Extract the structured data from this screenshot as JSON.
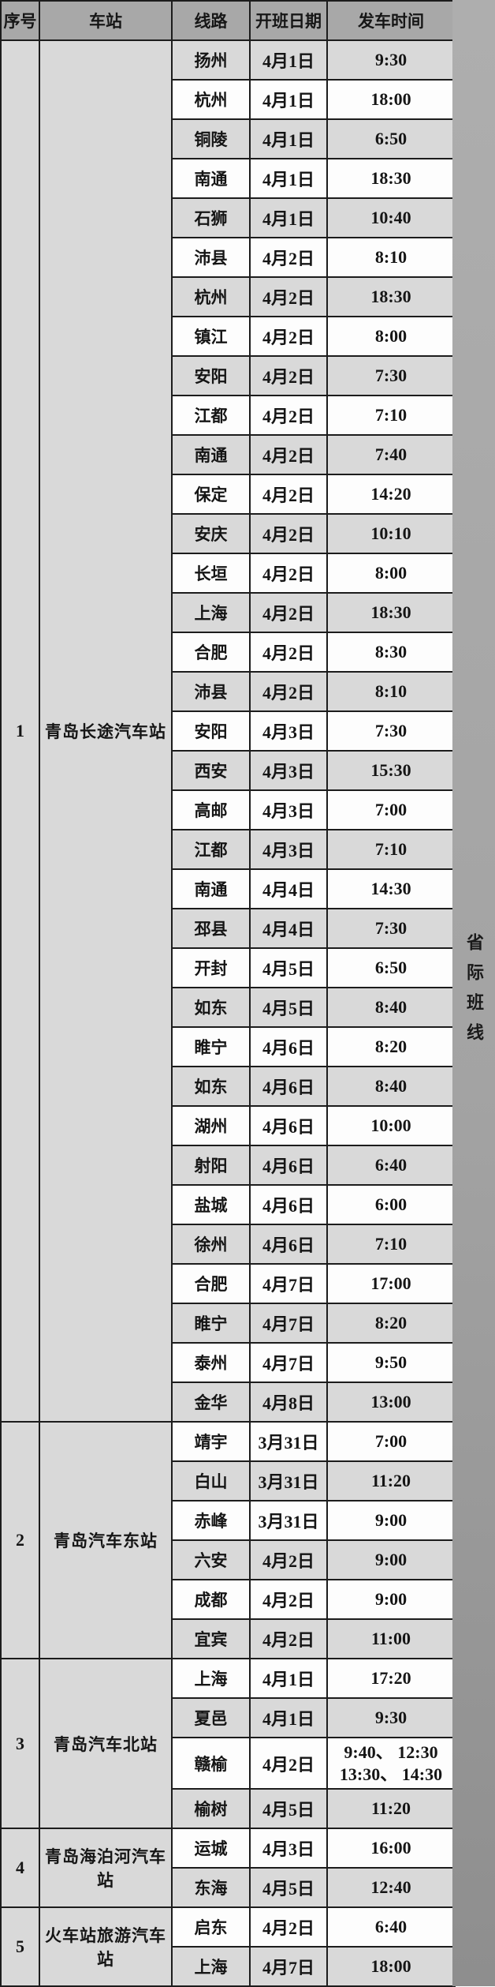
{
  "table": {
    "headers": {
      "index": "序号",
      "station": "车站",
      "route": "线路",
      "open_date": "开班日期",
      "depart_time": "发车时间"
    },
    "side_label": "省际班线",
    "sections": [
      {
        "index": "1",
        "station": "青岛长途汽车站",
        "rows": [
          {
            "route": "扬州",
            "date": "4月1日",
            "time": "9:30"
          },
          {
            "route": "杭州",
            "date": "4月1日",
            "time": "18:00"
          },
          {
            "route": "铜陵",
            "date": "4月1日",
            "time": "6:50"
          },
          {
            "route": "南通",
            "date": "4月1日",
            "time": "18:30"
          },
          {
            "route": "石狮",
            "date": "4月1日",
            "time": "10:40"
          },
          {
            "route": "沛县",
            "date": "4月2日",
            "time": "8:10"
          },
          {
            "route": "杭州",
            "date": "4月2日",
            "time": "18:30"
          },
          {
            "route": "镇江",
            "date": "4月2日",
            "time": "8:00"
          },
          {
            "route": "安阳",
            "date": "4月2日",
            "time": "7:30"
          },
          {
            "route": "江都",
            "date": "4月2日",
            "time": "7:10"
          },
          {
            "route": "南通",
            "date": "4月2日",
            "time": "7:40"
          },
          {
            "route": "保定",
            "date": "4月2日",
            "time": "14:20"
          },
          {
            "route": "安庆",
            "date": "4月2日",
            "time": "10:10"
          },
          {
            "route": "长垣",
            "date": "4月2日",
            "time": "8:00"
          },
          {
            "route": "上海",
            "date": "4月2日",
            "time": "18:30"
          },
          {
            "route": "合肥",
            "date": "4月2日",
            "time": "8:30"
          },
          {
            "route": "沛县",
            "date": "4月2日",
            "time": "8:10"
          },
          {
            "route": "安阳",
            "date": "4月3日",
            "time": "7:30"
          },
          {
            "route": "西安",
            "date": "4月3日",
            "time": "15:30"
          },
          {
            "route": "高邮",
            "date": "4月3日",
            "time": "7:00"
          },
          {
            "route": "江都",
            "date": "4月3日",
            "time": "7:10"
          },
          {
            "route": "南通",
            "date": "4月4日",
            "time": "14:30"
          },
          {
            "route": "邳县",
            "date": "4月4日",
            "time": "7:30"
          },
          {
            "route": "开封",
            "date": "4月5日",
            "time": "6:50"
          },
          {
            "route": "如东",
            "date": "4月5日",
            "time": "8:40"
          },
          {
            "route": "睢宁",
            "date": "4月6日",
            "time": "8:20"
          },
          {
            "route": "如东",
            "date": "4月6日",
            "time": "8:40"
          },
          {
            "route": "湖州",
            "date": "4月6日",
            "time": "10:00"
          },
          {
            "route": "射阳",
            "date": "4月6日",
            "time": "6:40"
          },
          {
            "route": "盐城",
            "date": "4月6日",
            "time": "6:00"
          },
          {
            "route": "徐州",
            "date": "4月6日",
            "time": "7:10"
          },
          {
            "route": "合肥",
            "date": "4月7日",
            "time": "17:00"
          },
          {
            "route": "睢宁",
            "date": "4月7日",
            "time": "8:20"
          },
          {
            "route": "泰州",
            "date": "4月7日",
            "time": "9:50"
          },
          {
            "route": "金华",
            "date": "4月8日",
            "time": "13:00"
          }
        ]
      },
      {
        "index": "2",
        "station": "青岛汽车东站",
        "rows": [
          {
            "route": "靖宇",
            "date": "3月31日",
            "time": "7:00"
          },
          {
            "route": "白山",
            "date": "3月31日",
            "time": "11:20"
          },
          {
            "route": "赤峰",
            "date": "3月31日",
            "time": "9:00"
          },
          {
            "route": "六安",
            "date": "4月2日",
            "time": "9:00"
          },
          {
            "route": "成都",
            "date": "4月2日",
            "time": "9:00"
          },
          {
            "route": "宜宾",
            "date": "4月2日",
            "time": "11:00"
          }
        ]
      },
      {
        "index": "3",
        "station": "青岛汽车北站",
        "rows": [
          {
            "route": "上海",
            "date": "4月1日",
            "time": "17:20"
          },
          {
            "route": "夏邑",
            "date": "4月1日",
            "time": "9:30"
          },
          {
            "route": "赣榆",
            "date": "4月2日",
            "time": "9:40、 12:30\n13:30、 14:30",
            "tall": true
          },
          {
            "route": "榆树",
            "date": "4月5日",
            "time": "11:20"
          }
        ]
      },
      {
        "index": "4",
        "station": "青岛海泊河汽车站",
        "rows": [
          {
            "route": "运城",
            "date": "4月3日",
            "time": "16:00"
          },
          {
            "route": "东海",
            "date": "4月5日",
            "time": "12:40"
          }
        ]
      },
      {
        "index": "5",
        "station": "火车站旅游汽车站",
        "rows": [
          {
            "route": "启东",
            "date": "4月2日",
            "time": "6:40"
          },
          {
            "route": "上海",
            "date": "4月7日",
            "time": "18:00"
          }
        ]
      }
    ]
  },
  "colors": {
    "header_bg": "#a8a8a8",
    "row_gray": "#d9d9d9",
    "row_white": "#fdfdfd",
    "side_strip": "#a3a3a3",
    "border": "#1c1c1c",
    "text": "#151515"
  }
}
